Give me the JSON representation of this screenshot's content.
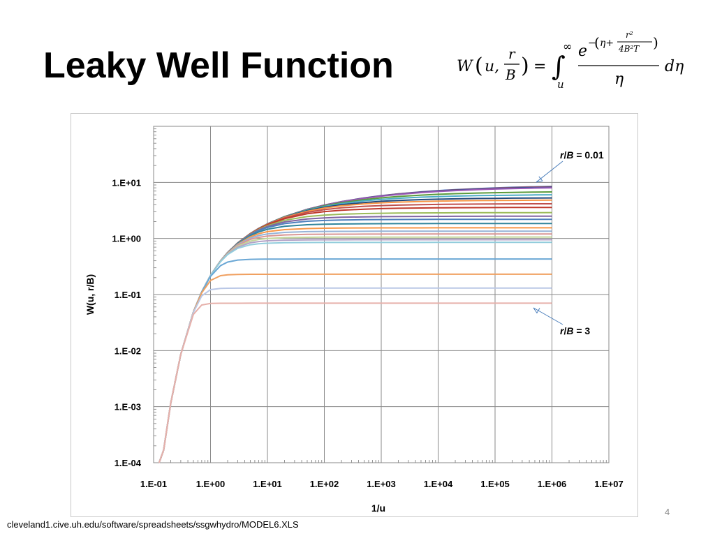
{
  "slide": {
    "title": "Leaky Well Function",
    "page_number": "4",
    "source": "cleveland1.cive.uh.edu/software/spreadsheets/ssgwhydro/MODEL6.XLS"
  },
  "formula": {
    "lhs": "W",
    "arg_u": "u,",
    "ratio_num": "r",
    "ratio_den": "B",
    "equals": "=",
    "integral": "∫",
    "upper_limit": "∞",
    "lower_limit": "u",
    "exp_base": "e",
    "exp_prefix": "−",
    "exp_eta": "η+",
    "exp_frac_num": "r²",
    "exp_frac_den": "4B²T",
    "denominator": "η",
    "differential": "dη"
  },
  "chart_data": {
    "type": "line",
    "xlabel": "1/u",
    "ylabel": "W(u, r/B)",
    "x_scale": "log",
    "y_scale": "log",
    "xlim": [
      0.1,
      10000000
    ],
    "ylim": [
      0.0001,
      100
    ],
    "x_tick_labels": [
      "1.E-01",
      "1.E+00",
      "1.E+01",
      "1.E+02",
      "1.E+03",
      "1.E+04",
      "1.E+05",
      "1.E+06",
      "1.E+07"
    ],
    "x_tick_values": [
      0.1,
      1,
      10,
      100,
      1000,
      10000,
      100000,
      1000000,
      10000000
    ],
    "y_tick_labels": [
      "1.E-04",
      "1.E-03",
      "1.E-02",
      "1.E-01",
      "1.E+00",
      "1.E+01"
    ],
    "y_tick_values": [
      0.0001,
      0.001,
      0.01,
      0.1,
      1,
      10
    ],
    "grid": true,
    "x": [
      0.125,
      0.15,
      0.2,
      0.3,
      0.5,
      0.7,
      1,
      1.5,
      2,
      3,
      5,
      7,
      10,
      20,
      50,
      100,
      200,
      500,
      1000,
      2000,
      5000,
      10000,
      20000,
      50000,
      100000,
      200000,
      500000,
      1000000
    ],
    "series": [
      {
        "plateau": 9.4,
        "color": "#4472c4"
      },
      {
        "plateau": 9.2,
        "color": "#c0504d"
      },
      {
        "plateau": 9.0,
        "color": "#2f4f8f"
      },
      {
        "plateau": 8.7,
        "color": "#9b59b6"
      },
      {
        "plateau": 7.1,
        "color": "#5b9b3c"
      },
      {
        "plateau": 6.2,
        "color": "#4bacc6"
      },
      {
        "plateau": 5.4,
        "color": "#1f497d"
      },
      {
        "plateau": 4.9,
        "color": "#f79646"
      },
      {
        "plateau": 4.2,
        "color": "#c0504d"
      },
      {
        "plateau": 3.6,
        "color": "#c0392b"
      },
      {
        "plateau": 2.9,
        "color": "#9bbb59"
      },
      {
        "plateau": 2.5,
        "color": "#8064a2"
      },
      {
        "plateau": 2.2,
        "color": "#4f81bd"
      },
      {
        "plateau": 1.85,
        "color": "#31859c"
      },
      {
        "plateau": 1.55,
        "color": "#f79646"
      },
      {
        "plateau": 1.35,
        "color": "#95b3d7"
      },
      {
        "plateau": 1.2,
        "color": "#d99694"
      },
      {
        "plateau": 1.06,
        "color": "#c3d69b"
      },
      {
        "plateau": 0.95,
        "color": "#b3a2c7"
      },
      {
        "plateau": 0.85,
        "color": "#92cddc"
      },
      {
        "plateau": 0.43,
        "color": "#6aa7d5"
      },
      {
        "plateau": 0.23,
        "color": "#f0a060"
      },
      {
        "plateau": 0.13,
        "color": "#b9c7e6"
      },
      {
        "plateau": 0.07,
        "color": "#e6b0aa"
      }
    ],
    "annotations": [
      {
        "text_italic": "r",
        "text_sep": "/",
        "text_italic2": "B",
        "text_value": " = 0.01",
        "points_to_x": 500000,
        "points_to_y": 9.4
      },
      {
        "text_italic": "r",
        "text_sep": "/",
        "text_italic2": "B",
        "text_value": " = 3",
        "points_to_x": 500000,
        "points_to_y": 0.07
      }
    ]
  }
}
